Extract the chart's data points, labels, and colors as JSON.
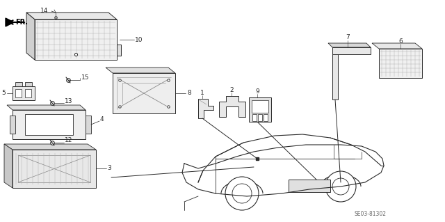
{
  "bg_color": "#ffffff",
  "line_color": "#2a2a2a",
  "gray": "#888888",
  "light_gray": "#bbbbbb",
  "diagram_code": "SE03-81302",
  "fig_w": 6.4,
  "fig_h": 3.19,
  "dpi": 100
}
